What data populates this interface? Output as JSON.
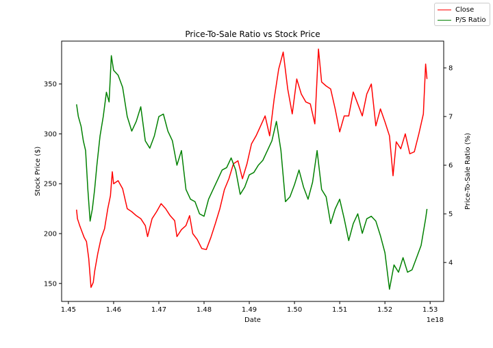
{
  "chart_data": {
    "type": "line",
    "title": "Price-To-Sale Ratio vs Stock Price",
    "xlabel": "Date",
    "x_offset_label": "1e18",
    "ylabel_left": "Stock Price ($)",
    "ylabel_right": "Price-To-Sale Ratio (%)",
    "xlim": [
      1.4485,
      1.533
    ],
    "ylim_left": [
      132,
      393
    ],
    "ylim_right": [
      3.2,
      8.55
    ],
    "x_ticks": [
      1.45,
      1.46,
      1.47,
      1.48,
      1.49,
      1.5,
      1.51,
      1.52,
      1.53
    ],
    "x_tick_labels": [
      "1.45",
      "1.46",
      "1.47",
      "1.48",
      "1.49",
      "1.50",
      "1.51",
      "1.52",
      "1.53"
    ],
    "y_left_ticks": [
      150,
      200,
      250,
      300,
      350
    ],
    "y_right_ticks": [
      4,
      5,
      6,
      7,
      8
    ],
    "legend_position": "top-right",
    "series": [
      {
        "name": "Close",
        "color": "#ff0000",
        "axis": "left",
        "points": [
          [
            1.4518,
            224
          ],
          [
            1.452,
            215
          ],
          [
            1.4525,
            208
          ],
          [
            1.453,
            202
          ],
          [
            1.4535,
            196
          ],
          [
            1.454,
            192
          ],
          [
            1.4545,
            175
          ],
          [
            1.455,
            146
          ],
          [
            1.4555,
            151
          ],
          [
            1.4558,
            162
          ],
          [
            1.4565,
            180
          ],
          [
            1.4572,
            195
          ],
          [
            1.458,
            205
          ],
          [
            1.4587,
            225
          ],
          [
            1.4593,
            238
          ],
          [
            1.4597,
            262
          ],
          [
            1.46,
            250
          ],
          [
            1.461,
            253
          ],
          [
            1.462,
            245
          ],
          [
            1.463,
            225
          ],
          [
            1.464,
            222
          ],
          [
            1.465,
            218
          ],
          [
            1.466,
            215
          ],
          [
            1.467,
            208
          ],
          [
            1.4675,
            197
          ],
          [
            1.4685,
            215
          ],
          [
            1.4695,
            222
          ],
          [
            1.4705,
            230
          ],
          [
            1.4715,
            225
          ],
          [
            1.4725,
            218
          ],
          [
            1.4735,
            213
          ],
          [
            1.474,
            197
          ],
          [
            1.475,
            204
          ],
          [
            1.476,
            208
          ],
          [
            1.4768,
            218
          ],
          [
            1.4775,
            200
          ],
          [
            1.4785,
            194
          ],
          [
            1.4795,
            185
          ],
          [
            1.4805,
            184
          ],
          [
            1.4815,
            196
          ],
          [
            1.4825,
            210
          ],
          [
            1.4835,
            225
          ],
          [
            1.4845,
            244
          ],
          [
            1.4855,
            255
          ],
          [
            1.4865,
            270
          ],
          [
            1.4875,
            273
          ],
          [
            1.4885,
            255
          ],
          [
            1.4895,
            270
          ],
          [
            1.4905,
            290
          ],
          [
            1.4915,
            298
          ],
          [
            1.4925,
            308
          ],
          [
            1.4935,
            318
          ],
          [
            1.4945,
            298
          ],
          [
            1.4955,
            335
          ],
          [
            1.4965,
            365
          ],
          [
            1.4975,
            382
          ],
          [
            1.4985,
            345
          ],
          [
            1.4995,
            320
          ],
          [
            1.5005,
            355
          ],
          [
            1.5015,
            340
          ],
          [
            1.5025,
            332
          ],
          [
            1.5035,
            330
          ],
          [
            1.5045,
            310
          ],
          [
            1.5053,
            385
          ],
          [
            1.506,
            352
          ],
          [
            1.507,
            348
          ],
          [
            1.508,
            345
          ],
          [
            1.509,
            325
          ],
          [
            1.51,
            302
          ],
          [
            1.511,
            318
          ],
          [
            1.512,
            318
          ],
          [
            1.513,
            342
          ],
          [
            1.514,
            330
          ],
          [
            1.515,
            318
          ],
          [
            1.516,
            340
          ],
          [
            1.517,
            350
          ],
          [
            1.518,
            308
          ],
          [
            1.519,
            325
          ],
          [
            1.52,
            312
          ],
          [
            1.521,
            298
          ],
          [
            1.5218,
            258
          ],
          [
            1.5225,
            292
          ],
          [
            1.5235,
            285
          ],
          [
            1.5245,
            300
          ],
          [
            1.5255,
            280
          ],
          [
            1.5265,
            282
          ],
          [
            1.5275,
            300
          ],
          [
            1.5285,
            320
          ],
          [
            1.529,
            370
          ],
          [
            1.5293,
            355
          ]
        ]
      },
      {
        "name": "P/S Ratio",
        "color": "#008000",
        "axis": "right",
        "points": [
          [
            1.4518,
            7.25
          ],
          [
            1.4522,
            7.0
          ],
          [
            1.4528,
            6.8
          ],
          [
            1.4533,
            6.5
          ],
          [
            1.4538,
            6.3
          ],
          [
            1.4543,
            5.5
          ],
          [
            1.4548,
            4.85
          ],
          [
            1.4553,
            5.1
          ],
          [
            1.4558,
            5.5
          ],
          [
            1.4563,
            6.0
          ],
          [
            1.457,
            6.6
          ],
          [
            1.4577,
            7.0
          ],
          [
            1.4584,
            7.5
          ],
          [
            1.459,
            7.3
          ],
          [
            1.4595,
            8.25
          ],
          [
            1.46,
            7.95
          ],
          [
            1.461,
            7.85
          ],
          [
            1.462,
            7.6
          ],
          [
            1.463,
            7.0
          ],
          [
            1.464,
            6.7
          ],
          [
            1.465,
            6.9
          ],
          [
            1.466,
            7.2
          ],
          [
            1.467,
            6.5
          ],
          [
            1.468,
            6.35
          ],
          [
            1.469,
            6.6
          ],
          [
            1.47,
            7.0
          ],
          [
            1.471,
            7.05
          ],
          [
            1.472,
            6.7
          ],
          [
            1.473,
            6.5
          ],
          [
            1.474,
            6.0
          ],
          [
            1.475,
            6.3
          ],
          [
            1.476,
            5.5
          ],
          [
            1.477,
            5.3
          ],
          [
            1.478,
            5.25
          ],
          [
            1.479,
            5.0
          ],
          [
            1.48,
            4.95
          ],
          [
            1.481,
            5.3
          ],
          [
            1.482,
            5.5
          ],
          [
            1.483,
            5.7
          ],
          [
            1.484,
            5.9
          ],
          [
            1.485,
            5.95
          ],
          [
            1.486,
            6.15
          ],
          [
            1.487,
            5.9
          ],
          [
            1.488,
            5.4
          ],
          [
            1.489,
            5.55
          ],
          [
            1.49,
            5.8
          ],
          [
            1.491,
            5.85
          ],
          [
            1.492,
            6.0
          ],
          [
            1.493,
            6.1
          ],
          [
            1.494,
            6.3
          ],
          [
            1.495,
            6.5
          ],
          [
            1.496,
            6.9
          ],
          [
            1.497,
            6.3
          ],
          [
            1.498,
            5.25
          ],
          [
            1.499,
            5.35
          ],
          [
            1.5,
            5.6
          ],
          [
            1.501,
            5.9
          ],
          [
            1.502,
            5.55
          ],
          [
            1.503,
            5.3
          ],
          [
            1.504,
            5.65
          ],
          [
            1.505,
            6.3
          ],
          [
            1.506,
            5.5
          ],
          [
            1.507,
            5.35
          ],
          [
            1.508,
            4.8
          ],
          [
            1.509,
            5.1
          ],
          [
            1.51,
            5.3
          ],
          [
            1.511,
            4.9
          ],
          [
            1.512,
            4.45
          ],
          [
            1.513,
            4.8
          ],
          [
            1.514,
            5.0
          ],
          [
            1.515,
            4.6
          ],
          [
            1.516,
            4.9
          ],
          [
            1.517,
            4.95
          ],
          [
            1.518,
            4.85
          ],
          [
            1.519,
            4.55
          ],
          [
            1.52,
            4.2
          ],
          [
            1.521,
            3.45
          ],
          [
            1.522,
            3.95
          ],
          [
            1.523,
            3.8
          ],
          [
            1.524,
            4.1
          ],
          [
            1.525,
            3.8
          ],
          [
            1.526,
            3.85
          ],
          [
            1.527,
            4.1
          ],
          [
            1.528,
            4.35
          ],
          [
            1.529,
            4.9
          ],
          [
            1.5293,
            5.1
          ]
        ]
      }
    ]
  }
}
